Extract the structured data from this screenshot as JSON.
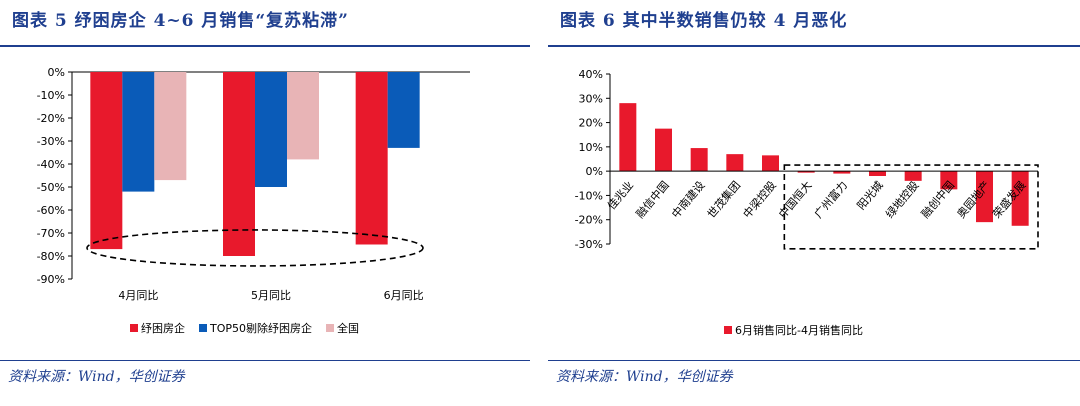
{
  "left": {
    "title": "图表 5 纾困房企 4~6 月销售“复苏粘滞”",
    "source": "资料来源：Wind，华创证券",
    "chart_data": {
      "type": "bar",
      "categories": [
        "4月同比",
        "5月同比",
        "6月同比"
      ],
      "series": [
        {
          "name": "纾困房企",
          "color": "#e8192c",
          "values": [
            -77,
            -80,
            -75
          ]
        },
        {
          "name": "TOP50剔除纾困房企",
          "color": "#0a5bb8",
          "values": [
            -52,
            -50,
            -33
          ]
        },
        {
          "name": "全国",
          "color": "#e8b4b6",
          "values": [
            -47,
            -38,
            null
          ]
        }
      ],
      "ylim": [
        -90,
        0
      ],
      "yticks": [
        "0%",
        "-10%",
        "-20%",
        "-30%",
        "-40%",
        "-50%",
        "-60%",
        "-70%",
        "-80%",
        "-90%"
      ],
      "legend": "bottom",
      "grid": false
    }
  },
  "right": {
    "title": "图表 6 其中半数销售仍较 4 月恶化",
    "source": "资料来源：Wind，华创证券",
    "chart_data": {
      "type": "bar",
      "categories": [
        "佳兆业",
        "融信中国",
        "中南建设",
        "世茂集团",
        "中梁控股",
        "中国恒大",
        "广州富力",
        "阳光城",
        "绿地控股",
        "融创中国",
        "奥园地产",
        "荣盛发展"
      ],
      "series": [
        {
          "name": "6月销售同比-4月销售同比",
          "color": "#e8192c",
          "values": [
            28,
            17.5,
            9.5,
            7,
            6.5,
            -0.5,
            -1,
            -2,
            -4,
            -7.5,
            -21,
            -22.5
          ]
        }
      ],
      "ylim": [
        -30,
        40
      ],
      "yticks": [
        "40%",
        "30%",
        "20%",
        "10%",
        "0%",
        "-10%",
        "-20%",
        "-30%"
      ],
      "legend": "bottom",
      "grid": false
    }
  }
}
